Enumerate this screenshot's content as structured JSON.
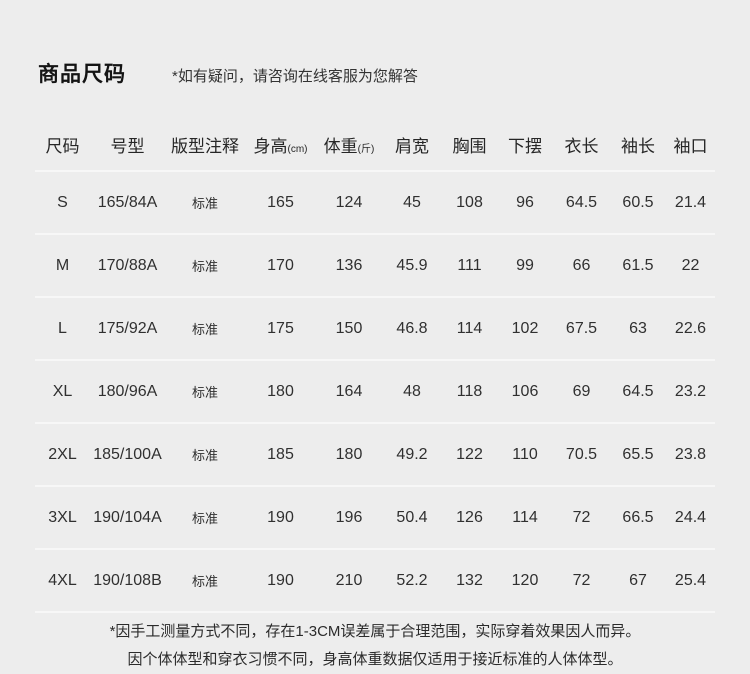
{
  "header": {
    "title": "商品尺码",
    "subtitle": "*如有疑问，请咨询在线客服为您解答"
  },
  "table": {
    "columns": [
      {
        "label": "尺码",
        "unit": ""
      },
      {
        "label": "号型",
        "unit": ""
      },
      {
        "label": "版型注释",
        "unit": ""
      },
      {
        "label": "身高",
        "unit": "(cm)"
      },
      {
        "label": "体重",
        "unit": "(斤)"
      },
      {
        "label": "肩宽",
        "unit": ""
      },
      {
        "label": "胸围",
        "unit": ""
      },
      {
        "label": "下摆",
        "unit": ""
      },
      {
        "label": "衣长",
        "unit": ""
      },
      {
        "label": "袖长",
        "unit": ""
      },
      {
        "label": "袖口",
        "unit": ""
      }
    ],
    "rows": [
      [
        "S",
        "165/84A",
        "标准",
        "165",
        "124",
        "45",
        "108",
        "96",
        "64.5",
        "60.5",
        "21.4"
      ],
      [
        "M",
        "170/88A",
        "标准",
        "170",
        "136",
        "45.9",
        "111",
        "99",
        "66",
        "61.5",
        "22"
      ],
      [
        "L",
        "175/92A",
        "标准",
        "175",
        "150",
        "46.8",
        "114",
        "102",
        "67.5",
        "63",
        "22.6"
      ],
      [
        "XL",
        "180/96A",
        "标准",
        "180",
        "164",
        "48",
        "118",
        "106",
        "69",
        "64.5",
        "23.2"
      ],
      [
        "2XL",
        "185/100A",
        "标准",
        "185",
        "180",
        "49.2",
        "122",
        "110",
        "70.5",
        "65.5",
        "23.8"
      ],
      [
        "3XL",
        "190/104A",
        "标准",
        "190",
        "196",
        "50.4",
        "126",
        "114",
        "72",
        "66.5",
        "24.4"
      ],
      [
        "4XL",
        "190/108B",
        "标准",
        "190",
        "210",
        "52.2",
        "132",
        "120",
        "72",
        "67",
        "25.4"
      ]
    ]
  },
  "footnotes": {
    "line1": "*因手工测量方式不同，存在1-3CM误差属于合理范围，实际穿着效果因人而异。",
    "line2": "因个体体型和穿衣习惯不同，身高体重数据仅适用于接近标准的人体体型。"
  },
  "colors": {
    "background": "#ededed",
    "separator": "#f7f7f7",
    "text": "#2b2b2b"
  }
}
